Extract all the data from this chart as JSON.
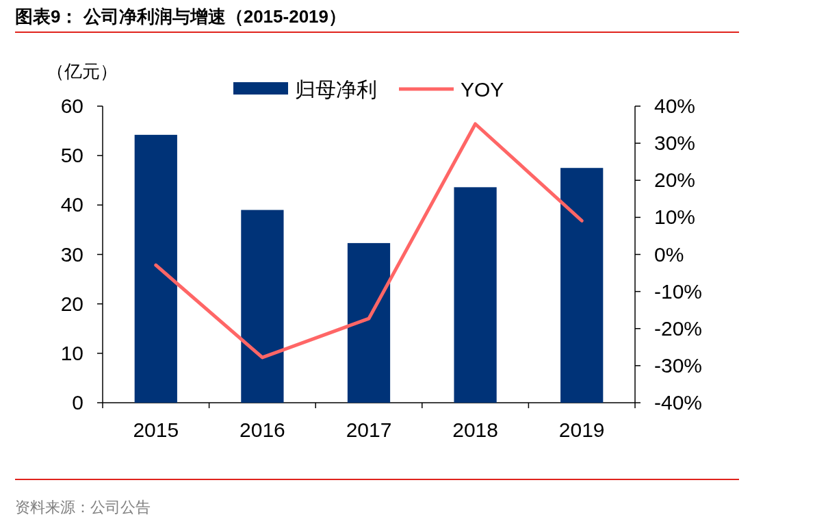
{
  "chart_data": {
    "type": "bar",
    "title": "图表9：  公司净利润与增速（2015-2019）",
    "ylabel": "（亿元）",
    "categories": [
      "2015",
      "2016",
      "2017",
      "2018",
      "2019"
    ],
    "series": [
      {
        "name": "归母净利",
        "color": "#003378",
        "values": [
          54.2,
          39.0,
          32.3,
          43.6,
          47.5
        ]
      },
      {
        "name": "YOY",
        "type": "line",
        "axis": "y2",
        "color": "#ff6666",
        "values": [
          -2.9,
          -27.8,
          -17.3,
          35.2,
          9.1
        ]
      }
    ],
    "ylim": [
      0,
      60
    ],
    "yticks": [
      0,
      10,
      20,
      30,
      40,
      50,
      60
    ],
    "y2lim": [
      -40,
      40
    ],
    "y2ticks": [
      {
        "value": -40,
        "label": "-40%"
      },
      {
        "value": -30,
        "label": "-30%"
      },
      {
        "value": -20,
        "label": "-20%"
      },
      {
        "value": -10,
        "label": "-10%"
      },
      {
        "value": 0,
        "label": "0%"
      },
      {
        "value": 10,
        "label": "10%"
      },
      {
        "value": 20,
        "label": "20%"
      },
      {
        "value": 30,
        "label": "30%"
      },
      {
        "value": 40,
        "label": "40%"
      }
    ],
    "legend": "top",
    "annotations": [
      "资料来源：公司公告"
    ]
  }
}
